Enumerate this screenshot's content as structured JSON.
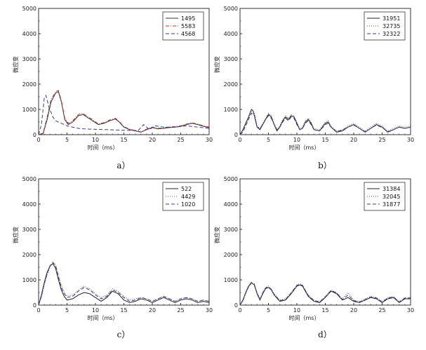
{
  "chart_data": [
    {
      "type": "line",
      "caption": "a）",
      "xlabel": "时间（ms）",
      "ylabel": "微应变",
      "xlim": [
        0,
        30
      ],
      "ylim": [
        0,
        5000
      ],
      "xticks": [
        "0",
        "5",
        "10",
        "15",
        "20",
        "25",
        "30"
      ],
      "yticks": [
        "0",
        "1000",
        "2000",
        "3000",
        "4000",
        "5000"
      ],
      "legend_position": "top-right",
      "series": [
        {
          "name": "1495",
          "color": "#333333",
          "dash": "",
          "x": [
            0,
            0.8,
            1.5,
            2.2,
            3,
            3.5,
            4,
            4.6,
            5.2,
            6,
            7,
            7.8,
            8.5,
            9.5,
            10.5,
            11.5,
            12.5,
            13.5,
            14.2,
            15,
            16,
            17,
            18,
            19,
            20,
            21,
            22,
            23,
            24,
            25,
            26,
            27,
            28,
            29,
            30
          ],
          "y": [
            0,
            50,
            600,
            1300,
            1650,
            1700,
            1300,
            600,
            400,
            500,
            750,
            800,
            700,
            550,
            400,
            450,
            550,
            620,
            500,
            300,
            200,
            150,
            100,
            200,
            280,
            230,
            250,
            280,
            300,
            330,
            400,
            450,
            400,
            330,
            280
          ]
        },
        {
          "name": "5583",
          "color": "#b03030",
          "dash": "5,2,1,2",
          "x": [
            0,
            0.8,
            1.5,
            2.2,
            3,
            3.5,
            4,
            4.6,
            5.2,
            6,
            7,
            7.8,
            8.5,
            9.5,
            10.5,
            11.5,
            12.5,
            13.5,
            14.2,
            15,
            16,
            17,
            18,
            19,
            20,
            21,
            22,
            23,
            24,
            25,
            26,
            27,
            28,
            29,
            30
          ],
          "y": [
            0,
            60,
            700,
            1400,
            1700,
            1750,
            1350,
            650,
            450,
            550,
            800,
            850,
            720,
            600,
            420,
            480,
            580,
            650,
            520,
            320,
            220,
            160,
            110,
            220,
            300,
            250,
            270,
            300,
            320,
            350,
            420,
            470,
            420,
            350,
            300
          ]
        },
        {
          "name": "4568",
          "color": "#3a3a8a",
          "dash": "5,3",
          "x": [
            0,
            0.5,
            1,
            1.3,
            1.8,
            2.5,
            3,
            4,
            5,
            6,
            7,
            8,
            9,
            10,
            12,
            14,
            16,
            17.5,
            18.5,
            19.5,
            20.5,
            22,
            24,
            26,
            28,
            30
          ],
          "y": [
            0,
            400,
            1450,
            1550,
            1100,
            700,
            550,
            450,
            350,
            300,
            250,
            230,
            220,
            210,
            200,
            180,
            170,
            160,
            400,
            200,
            350,
            300,
            300,
            350,
            300,
            250
          ]
        }
      ]
    },
    {
      "type": "line",
      "caption": "b）",
      "xlabel": "时间（ms）",
      "ylabel": "微应变",
      "xlim": [
        0,
        30
      ],
      "ylim": [
        0,
        5000
      ],
      "xticks": [
        "0",
        "5",
        "10",
        "15",
        "20",
        "25",
        "30"
      ],
      "yticks": [
        "0",
        "1000",
        "2000",
        "3000",
        "4000",
        "5000"
      ],
      "legend_position": "top-right",
      "series": [
        {
          "name": "31951",
          "color": "#222222",
          "dash": "",
          "x": [
            0,
            0.5,
            1,
            1.5,
            2,
            2.3,
            3,
            3.5,
            4,
            4.5,
            5,
            5.5,
            6,
            6.5,
            7,
            7.5,
            8,
            8.5,
            9,
            9.5,
            10,
            10.5,
            11,
            11.5,
            12,
            12.5,
            13,
            14,
            15,
            15.5,
            16,
            17,
            18,
            19,
            20,
            21,
            22,
            23,
            24,
            25,
            26,
            27,
            28,
            29,
            30
          ],
          "y": [
            0,
            200,
            450,
            700,
            1000,
            950,
            300,
            200,
            400,
            600,
            800,
            700,
            400,
            150,
            300,
            550,
            700,
            600,
            750,
            700,
            450,
            200,
            250,
            500,
            600,
            450,
            200,
            150,
            450,
            500,
            300,
            100,
            150,
            300,
            400,
            250,
            100,
            250,
            400,
            300,
            100,
            200,
            300,
            250,
            300
          ]
        },
        {
          "name": "32735",
          "color": "#555555",
          "dash": "1,2",
          "x": [
            0,
            0.5,
            1,
            1.5,
            2,
            2.5,
            3,
            3.5,
            4,
            4.5,
            5,
            5.5,
            6,
            6.5,
            7,
            7.5,
            8,
            8.5,
            9,
            9.5,
            10,
            10.5,
            11,
            11.5,
            12,
            12.5,
            13,
            14,
            15,
            15.5,
            16,
            17,
            18,
            19,
            20,
            21,
            22,
            23,
            24,
            25,
            26,
            27,
            28,
            29,
            30
          ],
          "y": [
            0,
            150,
            400,
            650,
            900,
            900,
            350,
            250,
            450,
            650,
            850,
            750,
            450,
            200,
            350,
            600,
            750,
            650,
            800,
            750,
            500,
            250,
            300,
            550,
            650,
            500,
            250,
            200,
            500,
            550,
            350,
            150,
            200,
            350,
            450,
            300,
            150,
            300,
            450,
            350,
            150,
            250,
            350,
            300,
            350
          ]
        },
        {
          "name": "32322",
          "color": "#3a3a8a",
          "dash": "5,3",
          "x": [
            0,
            0.5,
            1,
            1.5,
            2,
            2.5,
            3,
            3.5,
            4,
            4.5,
            5,
            5.5,
            6,
            6.5,
            7,
            7.5,
            8,
            8.5,
            9,
            9.5,
            10,
            10.5,
            11,
            11.5,
            12,
            12.5,
            13,
            14,
            15,
            15.5,
            16,
            17,
            18,
            19,
            20,
            21,
            22,
            23,
            24,
            25,
            26,
            27,
            28,
            29,
            30
          ],
          "y": [
            0,
            100,
            350,
            600,
            850,
            800,
            300,
            250,
            400,
            600,
            750,
            650,
            400,
            200,
            300,
            500,
            650,
            550,
            700,
            650,
            400,
            200,
            250,
            450,
            550,
            400,
            200,
            150,
            400,
            450,
            300,
            120,
            180,
            300,
            380,
            250,
            120,
            250,
            380,
            280,
            120,
            200,
            300,
            250,
            300
          ]
        }
      ]
    },
    {
      "type": "line",
      "caption": "c）",
      "xlabel": "时间（ms）",
      "ylabel": "微应变",
      "xlim": [
        0,
        30
      ],
      "ylim": [
        0,
        5000
      ],
      "xticks": [
        "0",
        "5",
        "10",
        "15",
        "20",
        "25",
        "30"
      ],
      "yticks": [
        "0",
        "1000",
        "2000",
        "3000",
        "4000",
        "5000"
      ],
      "legend_position": "top-right",
      "series": [
        {
          "name": "522",
          "color": "#222222",
          "dash": "",
          "x": [
            0,
            0.5,
            1,
            1.5,
            2,
            2.5,
            3,
            3.5,
            4,
            4.5,
            5,
            6,
            7,
            8,
            9,
            10,
            11,
            12,
            13,
            14,
            15,
            16,
            17,
            18,
            19,
            20,
            21,
            22,
            23,
            24,
            25,
            26,
            27,
            28,
            29,
            30
          ],
          "y": [
            0,
            400,
            900,
            1300,
            1550,
            1650,
            1450,
            1000,
            600,
            350,
            200,
            250,
            400,
            500,
            450,
            300,
            150,
            300,
            550,
            450,
            200,
            100,
            150,
            250,
            200,
            100,
            200,
            300,
            200,
            100,
            200,
            250,
            200,
            100,
            150,
            100
          ]
        },
        {
          "name": "4429",
          "color": "#555555",
          "dash": "1,2",
          "x": [
            0,
            0.5,
            1,
            1.5,
            2,
            2.5,
            3,
            3.5,
            4,
            4.5,
            5,
            6,
            7,
            8,
            9,
            10,
            11,
            12,
            13,
            14,
            15,
            16,
            17,
            18,
            19,
            20,
            21,
            22,
            23,
            24,
            25,
            26,
            27,
            28,
            29,
            30
          ],
          "y": [
            0,
            300,
            800,
            1200,
            1500,
            1650,
            1600,
            1200,
            800,
            500,
            350,
            400,
            600,
            750,
            650,
            450,
            300,
            400,
            650,
            550,
            350,
            200,
            250,
            300,
            250,
            150,
            250,
            350,
            250,
            150,
            250,
            300,
            250,
            150,
            200,
            150
          ]
        },
        {
          "name": "1020",
          "color": "#3a3a8a",
          "dash": "5,3",
          "x": [
            0,
            0.5,
            1,
            1.5,
            2,
            2.5,
            3,
            3.5,
            4,
            4.5,
            5,
            6,
            7,
            8,
            9,
            10,
            11,
            12,
            13,
            14,
            15,
            16,
            17,
            18,
            19,
            20,
            21,
            22,
            23,
            24,
            25,
            26,
            27,
            28,
            29,
            30
          ],
          "y": [
            0,
            350,
            850,
            1250,
            1550,
            1700,
            1550,
            1100,
            700,
            450,
            300,
            350,
            550,
            700,
            600,
            400,
            250,
            350,
            600,
            500,
            300,
            150,
            200,
            300,
            250,
            150,
            250,
            350,
            250,
            150,
            250,
            300,
            250,
            150,
            200,
            150
          ]
        }
      ]
    },
    {
      "type": "line",
      "caption": "d）",
      "xlabel": "时间（ms）",
      "ylabel": "微应变",
      "xlim": [
        0,
        30
      ],
      "ylim": [
        0,
        5000
      ],
      "xticks": [
        "0",
        "5",
        "10",
        "15",
        "20",
        "25",
        "30"
      ],
      "yticks": [
        "0",
        "1000",
        "2000",
        "3000",
        "4000",
        "5000"
      ],
      "legend_position": "top-right",
      "series": [
        {
          "name": "31384",
          "color": "#222222",
          "dash": "",
          "x": [
            0,
            0.5,
            1,
            1.5,
            2,
            2.5,
            3,
            3.5,
            4,
            4.5,
            5,
            5.5,
            6,
            7,
            8,
            9,
            10,
            10.5,
            11,
            11.5,
            12,
            13,
            14,
            15,
            16,
            17,
            18,
            19,
            20,
            21,
            22,
            23,
            24,
            25,
            26,
            27,
            28,
            29,
            30
          ],
          "y": [
            0,
            200,
            500,
            750,
            900,
            800,
            450,
            200,
            450,
            650,
            700,
            600,
            400,
            150,
            200,
            450,
            750,
            800,
            750,
            550,
            350,
            150,
            100,
            300,
            550,
            450,
            200,
            300,
            150,
            100,
            200,
            300,
            250,
            100,
            250,
            300,
            100,
            250,
            250
          ]
        },
        {
          "name": "32045",
          "color": "#555555",
          "dash": "1,2",
          "x": [
            0,
            0.5,
            1,
            1.5,
            2,
            2.5,
            3,
            3.5,
            4,
            4.5,
            5,
            5.5,
            6,
            7,
            8,
            9,
            10,
            10.5,
            11,
            11.5,
            12,
            13,
            14,
            15,
            16,
            17,
            18,
            19,
            20,
            21,
            22,
            23,
            24,
            25,
            26,
            27,
            28,
            29,
            30
          ],
          "y": [
            0,
            150,
            450,
            700,
            850,
            850,
            500,
            250,
            500,
            700,
            750,
            650,
            450,
            200,
            250,
            500,
            800,
            850,
            800,
            600,
            400,
            200,
            150,
            350,
            600,
            500,
            250,
            500,
            200,
            150,
            250,
            350,
            300,
            150,
            300,
            350,
            150,
            300,
            300
          ]
        },
        {
          "name": "31877",
          "color": "#3a3a8a",
          "dash": "5,3",
          "x": [
            0,
            0.5,
            1,
            1.5,
            2,
            2.5,
            3,
            3.5,
            4,
            4.5,
            5,
            5.5,
            6,
            7,
            8,
            9,
            10,
            10.5,
            11,
            11.5,
            12,
            13,
            14,
            15,
            16,
            17,
            18,
            19,
            20,
            21,
            22,
            23,
            24,
            25,
            26,
            27,
            28,
            29,
            30
          ],
          "y": [
            0,
            180,
            480,
            720,
            880,
            820,
            480,
            220,
            480,
            680,
            720,
            620,
            420,
            180,
            220,
            480,
            780,
            820,
            780,
            580,
            380,
            180,
            120,
            320,
            580,
            480,
            220,
            400,
            180,
            120,
            220,
            320,
            280,
            120,
            280,
            320,
            120,
            280,
            280
          ]
        }
      ]
    }
  ]
}
